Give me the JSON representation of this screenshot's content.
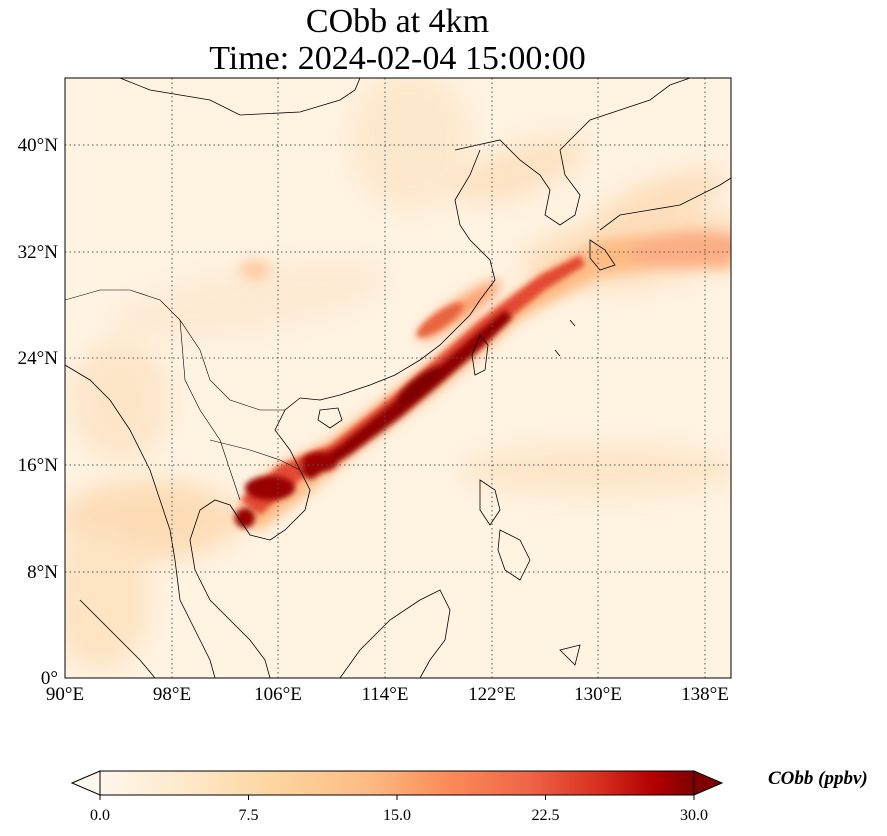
{
  "title": {
    "line1": "CObb at 4km",
    "line2": "Time: 2024-02-04 15:00:00"
  },
  "axes": {
    "lon_ticks": [
      "90°E",
      "98°E",
      "106°E",
      "114°E",
      "122°E",
      "130°E",
      "138°E"
    ],
    "lat_ticks": [
      "0°",
      "8°N",
      "16°N",
      "24°N",
      "32°N",
      "40°N"
    ],
    "lon_range": [
      90,
      140
    ],
    "lat_range": [
      0,
      45
    ],
    "gridlines": "dotted"
  },
  "colorbar": {
    "label": "CObb (ppbv)",
    "ticks": [
      "0.0",
      "7.5",
      "15.0",
      "22.5",
      "30.0"
    ],
    "range": [
      0,
      30
    ],
    "colormap": "OrRd",
    "extend": "both",
    "orientation": "horizontal"
  },
  "plume": {
    "description_color_max": "#7f0000",
    "color_low": "#fff7ec"
  }
}
